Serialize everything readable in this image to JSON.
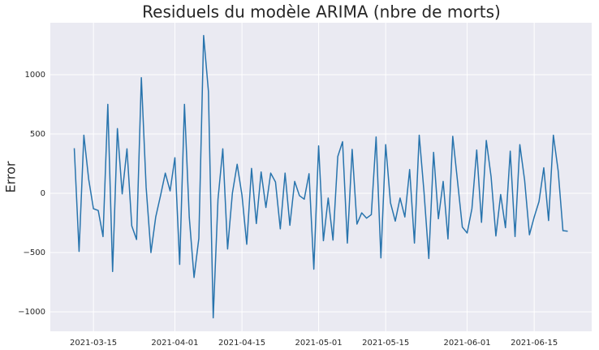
{
  "chart_data": {
    "type": "line",
    "title": "Residuels du modèle ARIMA (nbre de morts)",
    "y_label": "Error",
    "x": [
      "2021-03-11",
      "2021-03-12",
      "2021-03-13",
      "2021-03-14",
      "2021-03-15",
      "2021-03-16",
      "2021-03-17",
      "2021-03-18",
      "2021-03-19",
      "2021-03-20",
      "2021-03-21",
      "2021-03-22",
      "2021-03-23",
      "2021-03-24",
      "2021-03-25",
      "2021-03-26",
      "2021-03-27",
      "2021-03-28",
      "2021-03-29",
      "2021-03-30",
      "2021-03-31",
      "2021-04-01",
      "2021-04-02",
      "2021-04-03",
      "2021-04-04",
      "2021-04-05",
      "2021-04-06",
      "2021-04-07",
      "2021-04-08",
      "2021-04-09",
      "2021-04-10",
      "2021-04-11",
      "2021-04-12",
      "2021-04-13",
      "2021-04-14",
      "2021-04-15",
      "2021-04-16",
      "2021-04-17",
      "2021-04-18",
      "2021-04-19",
      "2021-04-20",
      "2021-04-21",
      "2021-04-22",
      "2021-04-23",
      "2021-04-24",
      "2021-04-25",
      "2021-04-26",
      "2021-04-27",
      "2021-04-28",
      "2021-04-29",
      "2021-04-30",
      "2021-05-01",
      "2021-05-02",
      "2021-05-03",
      "2021-05-04",
      "2021-05-05",
      "2021-05-06",
      "2021-05-07",
      "2021-05-08",
      "2021-05-09",
      "2021-05-10",
      "2021-05-11",
      "2021-05-12",
      "2021-05-13",
      "2021-05-14",
      "2021-05-15",
      "2021-05-16",
      "2021-05-17",
      "2021-05-18",
      "2021-05-19",
      "2021-05-20",
      "2021-05-21",
      "2021-05-22",
      "2021-05-23",
      "2021-05-24",
      "2021-05-25",
      "2021-05-26",
      "2021-05-27",
      "2021-05-28",
      "2021-05-29",
      "2021-05-30",
      "2021-05-31",
      "2021-06-01",
      "2021-06-02",
      "2021-06-03",
      "2021-06-04",
      "2021-06-05",
      "2021-06-06",
      "2021-06-07",
      "2021-06-08",
      "2021-06-09",
      "2021-06-10",
      "2021-06-11",
      "2021-06-12",
      "2021-06-13",
      "2021-06-14",
      "2021-06-15",
      "2021-06-16",
      "2021-06-17",
      "2021-06-18",
      "2021-06-19",
      "2021-06-20",
      "2021-06-21",
      "2021-06-22"
    ],
    "series": [
      {
        "color": "#2874ad",
        "values": [
          380,
          -490,
          490,
          120,
          -130,
          -145,
          -365,
          750,
          -660,
          545,
          -5,
          375,
          -275,
          -390,
          975,
          50,
          -500,
          -200,
          -20,
          170,
          20,
          300,
          -600,
          750,
          -200,
          -710,
          -380,
          1330,
          860,
          -1050,
          -50,
          375,
          -470,
          0,
          245,
          -15,
          -430,
          210,
          -255,
          180,
          -120,
          170,
          95,
          -300,
          170,
          -270,
          100,
          -20,
          -50,
          165,
          -640,
          400,
          -400,
          -40,
          -395,
          310,
          435,
          -420,
          370,
          -260,
          -165,
          -210,
          -180,
          475,
          -545,
          410,
          -80,
          -235,
          -40,
          -200,
          200,
          -420,
          490,
          10,
          -550,
          345,
          -215,
          100,
          -385,
          480,
          100,
          -285,
          -335,
          -130,
          365,
          -245,
          445,
          140,
          -360,
          -10,
          -290,
          355,
          -365,
          410,
          110,
          -350,
          -200,
          -70,
          215,
          -230,
          490,
          190,
          -315,
          -320
        ]
      }
    ],
    "xlim": [
      "2021-03-06",
      "2021-06-27"
    ],
    "xticks": [
      "2021-03-15",
      "2021-04-01",
      "2021-04-15",
      "2021-05-01",
      "2021-05-15",
      "2021-06-01",
      "2021-06-15"
    ],
    "ylim": [
      -1164,
      1438
    ],
    "yticks": [
      {
        "value": -1000,
        "label": "−1000"
      },
      {
        "value": -500,
        "label": "−500"
      },
      0,
      500,
      1000
    ],
    "grid": true
  }
}
